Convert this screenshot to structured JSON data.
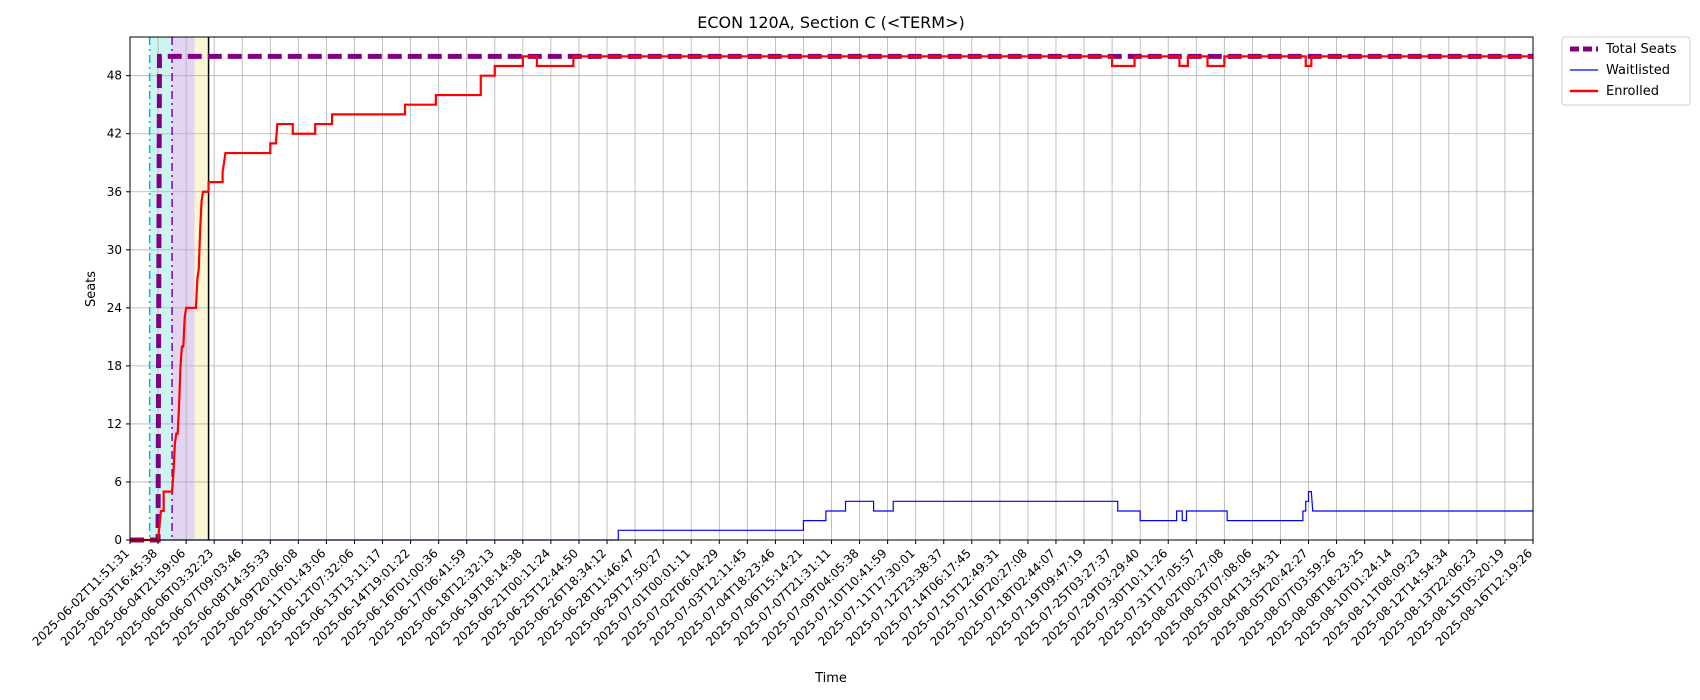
{
  "chart_data": {
    "type": "line",
    "title": "ECON 120A, Section C (<TERM>)",
    "xlabel": "Time",
    "ylabel": "Seats",
    "ylim": [
      0,
      52
    ],
    "grid": true,
    "legend_position": "outside-top-right",
    "y_ticks": [
      0,
      6,
      12,
      18,
      24,
      30,
      36,
      42,
      48
    ],
    "x_ticks": [
      "2025-06-02T11:51:31",
      "2025-06-03T16:45:38",
      "2025-06-04T21:59:06",
      "2025-06-06T03:32:23",
      "2025-06-07T09:03:46",
      "2025-06-08T14:35:33",
      "2025-06-09T20:06:08",
      "2025-06-11T01:43:06",
      "2025-06-12T07:32:06",
      "2025-06-13T13:11:17",
      "2025-06-14T19:01:22",
      "2025-06-16T01:00:36",
      "2025-06-17T06:41:59",
      "2025-06-18T12:32:13",
      "2025-06-19T18:14:38",
      "2025-06-21T00:11:24",
      "2025-06-25T12:44:50",
      "2025-06-26T18:34:12",
      "2025-06-28T11:46:47",
      "2025-06-29T17:50:27",
      "2025-07-01T00:01:11",
      "2025-07-02T06:04:29",
      "2025-07-03T12:11:45",
      "2025-07-04T18:23:46",
      "2025-07-06T15:14:21",
      "2025-07-07T21:31:11",
      "2025-07-09T04:05:38",
      "2025-07-10T10:41:59",
      "2025-07-11T17:30:01",
      "2025-07-12T23:38:37",
      "2025-07-14T06:17:45",
      "2025-07-15T12:49:31",
      "2025-07-16T20:27:08",
      "2025-07-18T02:44:07",
      "2025-07-19T09:47:19",
      "2025-07-25T03:27:37",
      "2025-07-29T03:29:40",
      "2025-07-30T10:11:26",
      "2025-07-31T17:05:57",
      "2025-08-02T00:27:08",
      "2025-08-03T07:08:06",
      "2025-08-04T13:54:31",
      "2025-08-05T20:42:27",
      "2025-08-07T03:59:26",
      "2025-08-08T18:23:25",
      "2025-08-10T01:24:14",
      "2025-08-11T08:09:23",
      "2025-08-12T14:54:34",
      "2025-08-13T22:06:23",
      "2025-08-15T05:20:19",
      "2025-08-16T12:19:26"
    ],
    "series": [
      {
        "name": "Total Seats",
        "color": "#800080",
        "style": "dashed",
        "points": [
          [
            0,
            0
          ],
          [
            1,
            0
          ],
          [
            1.05,
            50
          ],
          [
            50,
            50
          ]
        ]
      },
      {
        "name": "Waitlisted",
        "color": "#0000ff",
        "style": "solid",
        "points": [
          [
            0,
            0
          ],
          [
            17.4,
            0
          ],
          [
            17.4,
            1
          ],
          [
            24,
            1
          ],
          [
            24,
            2
          ],
          [
            24.8,
            2
          ],
          [
            24.8,
            3
          ],
          [
            25.5,
            3
          ],
          [
            25.5,
            4
          ],
          [
            26.5,
            4
          ],
          [
            26.5,
            3
          ],
          [
            27.2,
            3
          ],
          [
            27.2,
            4
          ],
          [
            35.2,
            4
          ],
          [
            35.2,
            3
          ],
          [
            36,
            3
          ],
          [
            36,
            2
          ],
          [
            37.3,
            2
          ],
          [
            37.3,
            3
          ],
          [
            37.5,
            3
          ],
          [
            37.5,
            2
          ],
          [
            37.65,
            2
          ],
          [
            37.65,
            3
          ],
          [
            39.1,
            3
          ],
          [
            39.1,
            2
          ],
          [
            41.8,
            2
          ],
          [
            41.8,
            3
          ],
          [
            41.9,
            3
          ],
          [
            41.9,
            4
          ],
          [
            42,
            4
          ],
          [
            42,
            5
          ],
          [
            42.1,
            5
          ],
          [
            42.15,
            3
          ],
          [
            50,
            3
          ]
        ]
      },
      {
        "name": "Enrolled",
        "color": "#ff0000",
        "style": "solid",
        "points": [
          [
            0,
            0
          ],
          [
            1,
            0
          ],
          [
            1.1,
            3
          ],
          [
            1.2,
            3
          ],
          [
            1.2,
            5
          ],
          [
            1.5,
            5
          ],
          [
            1.55,
            7
          ],
          [
            1.6,
            10
          ],
          [
            1.65,
            11
          ],
          [
            1.7,
            11
          ],
          [
            1.75,
            14
          ],
          [
            1.8,
            18
          ],
          [
            1.85,
            20
          ],
          [
            1.9,
            20
          ],
          [
            1.95,
            23
          ],
          [
            2,
            24
          ],
          [
            2.35,
            24
          ],
          [
            2.4,
            27
          ],
          [
            2.45,
            28
          ],
          [
            2.5,
            32
          ],
          [
            2.55,
            35
          ],
          [
            2.6,
            36
          ],
          [
            2.8,
            36
          ],
          [
            2.8,
            37
          ],
          [
            3.3,
            37
          ],
          [
            3.3,
            38
          ],
          [
            3.4,
            40
          ],
          [
            5,
            40
          ],
          [
            5,
            41
          ],
          [
            5.2,
            41
          ],
          [
            5.25,
            43
          ],
          [
            5.8,
            43
          ],
          [
            5.8,
            42
          ],
          [
            6.6,
            42
          ],
          [
            6.6,
            43
          ],
          [
            7.2,
            43
          ],
          [
            7.2,
            44
          ],
          [
            9.8,
            44
          ],
          [
            9.8,
            45
          ],
          [
            10.9,
            45
          ],
          [
            10.9,
            46
          ],
          [
            12.5,
            46
          ],
          [
            12.5,
            48
          ],
          [
            13,
            48
          ],
          [
            13,
            49
          ],
          [
            14,
            49
          ],
          [
            14,
            50
          ],
          [
            14.5,
            50
          ],
          [
            14.5,
            49
          ],
          [
            15.8,
            49
          ],
          [
            15.8,
            50
          ],
          [
            35,
            50
          ],
          [
            35,
            49
          ],
          [
            35.8,
            49
          ],
          [
            35.8,
            50
          ],
          [
            37.4,
            50
          ],
          [
            37.4,
            49
          ],
          [
            37.7,
            49
          ],
          [
            37.7,
            50
          ],
          [
            38.4,
            50
          ],
          [
            38.4,
            49
          ],
          [
            39,
            49
          ],
          [
            39,
            50
          ],
          [
            41.9,
            50
          ],
          [
            41.9,
            49
          ],
          [
            42.1,
            49
          ],
          [
            42.1,
            50
          ],
          [
            50,
            50
          ]
        ]
      }
    ],
    "vertical_lines": [
      {
        "x": 0.7,
        "color": "#00bfbf",
        "style": "dashdot"
      },
      {
        "x": 1.5,
        "color": "#6a0dad",
        "style": "dashdot"
      },
      {
        "x": 2.8,
        "color": "#000000",
        "style": "solid"
      }
    ],
    "spans": [
      {
        "x0": 0.7,
        "x1": 1.5,
        "color": "#cdf3f3"
      },
      {
        "x0": 1.5,
        "x1": 2.3,
        "color": "#e3d5f2"
      },
      {
        "x0": 2.3,
        "x1": 2.8,
        "color": "#fbf6d3"
      }
    ]
  }
}
